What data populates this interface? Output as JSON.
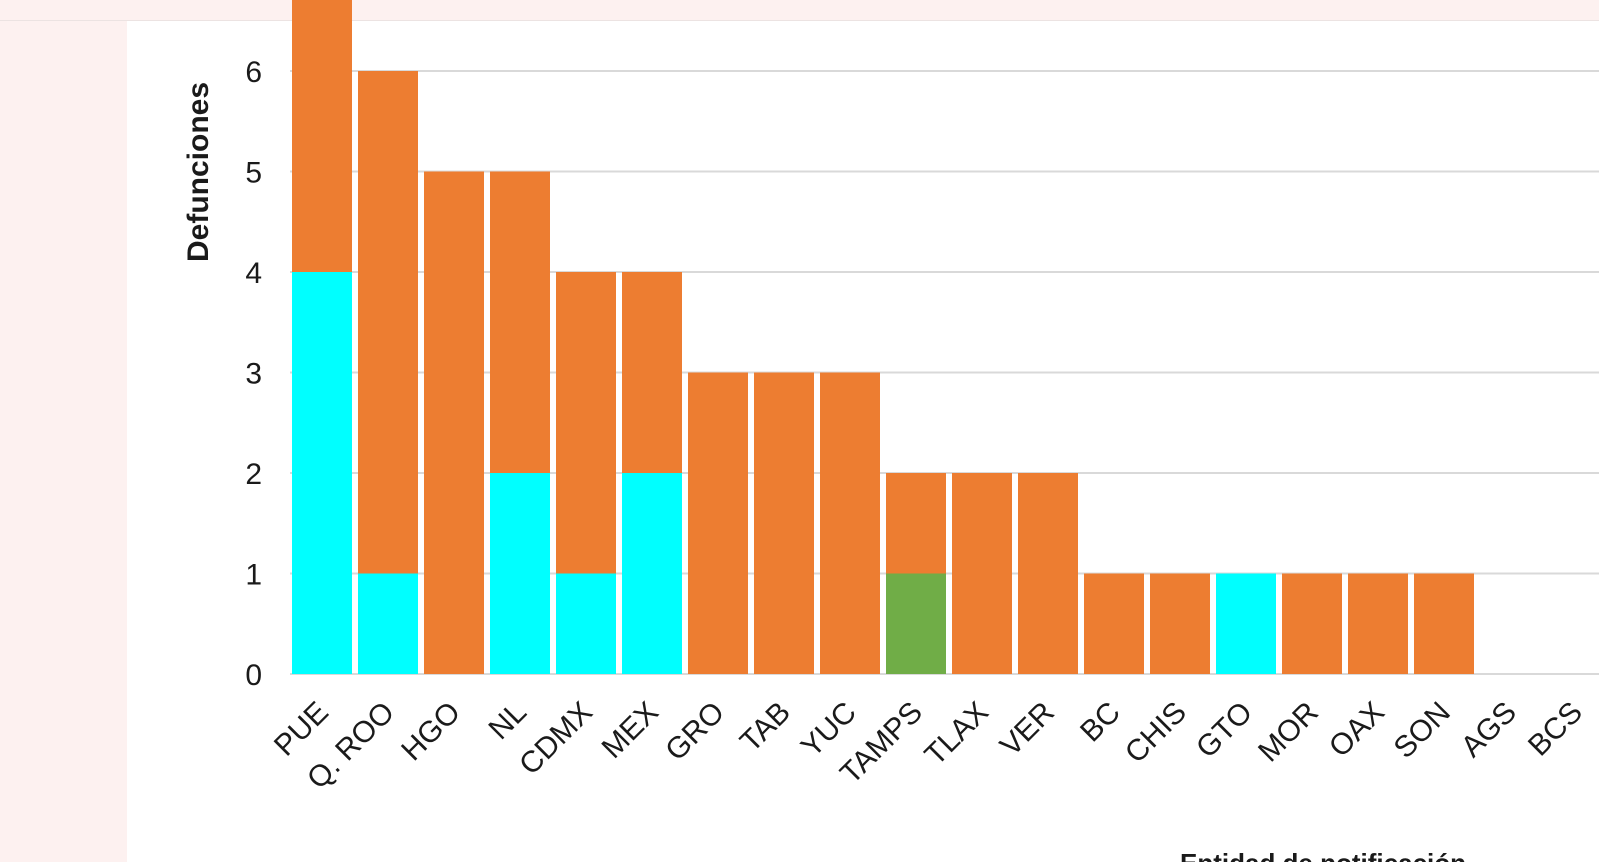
{
  "chart_data": {
    "type": "bar",
    "stacked": true,
    "ylabel": "Defunciones",
    "xlabel": "Entidad de notificación",
    "ylim": [
      0,
      6.5
    ],
    "yticks": [
      0,
      1,
      2,
      3,
      4,
      5,
      6
    ],
    "grid": true,
    "categories": [
      "PUE",
      "Q. ROO",
      "HGO",
      "NL",
      "CDMX",
      "MEX",
      "GRO",
      "TAB",
      "YUC",
      "TAMPS",
      "TLAX",
      "VER",
      "BC",
      "CHIS",
      "GTO",
      "MOR",
      "OAX",
      "SON",
      "AGS",
      "BCS"
    ],
    "series": [
      {
        "color": "#00ffff",
        "values": [
          4,
          1,
          0,
          2,
          1,
          2,
          0,
          0,
          0,
          0,
          0,
          0,
          0,
          0,
          1,
          0,
          0,
          0,
          0,
          0
        ]
      },
      {
        "color": "#70ad47",
        "values": [
          0,
          0,
          0,
          0,
          0,
          0,
          0,
          0,
          0,
          1,
          0,
          0,
          0,
          0,
          0,
          0,
          0,
          0,
          0,
          0
        ]
      },
      {
        "color": "#ed7d31",
        "values": [
          3,
          5,
          5,
          3,
          3,
          2,
          3,
          3,
          3,
          1,
          2,
          2,
          1,
          1,
          0,
          1,
          1,
          1,
          0,
          0
        ]
      }
    ]
  }
}
